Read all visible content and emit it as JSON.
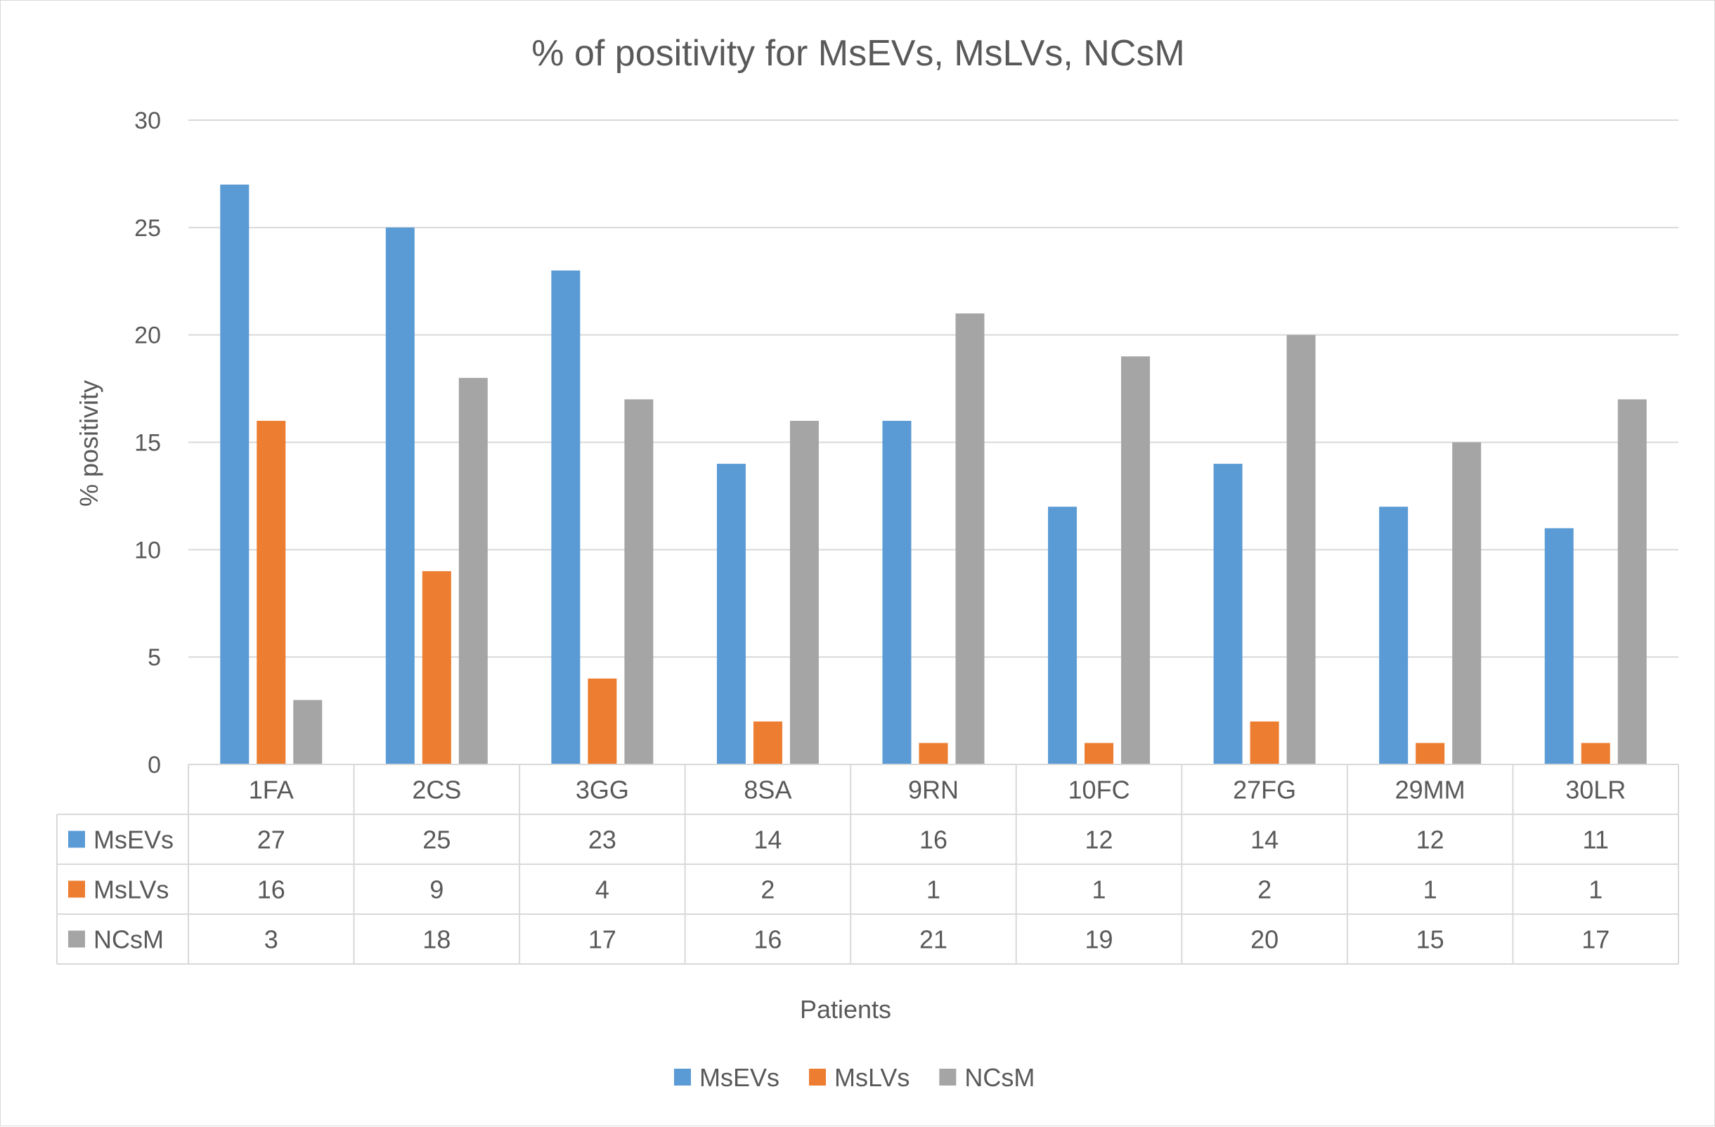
{
  "chart_data": {
    "type": "bar",
    "title": "% of positivity for MsEVs, MsLVs, NCsM",
    "xlabel": "Patients",
    "ylabel": "% positivity",
    "ylim": [
      0,
      30
    ],
    "yticks": [
      0,
      5,
      10,
      15,
      20,
      25,
      30
    ],
    "grid": true,
    "legend": "bottom",
    "categories": [
      "1FA",
      "2CS",
      "3GG",
      "8SA",
      "9RN",
      "10FC",
      "27FG",
      "29MM",
      "30LR"
    ],
    "series": [
      {
        "name": "MsEVs",
        "color": "#5b9bd5",
        "values": [
          27,
          25,
          23,
          14,
          16,
          12,
          14,
          12,
          11
        ]
      },
      {
        "name": "MsLVs",
        "color": "#ed7d31",
        "values": [
          16,
          9,
          4,
          2,
          1,
          1,
          2,
          1,
          1
        ]
      },
      {
        "name": "NCsM",
        "color": "#a5a5a5",
        "values": [
          3,
          18,
          17,
          16,
          21,
          19,
          20,
          15,
          17
        ]
      }
    ],
    "data_table": true
  }
}
